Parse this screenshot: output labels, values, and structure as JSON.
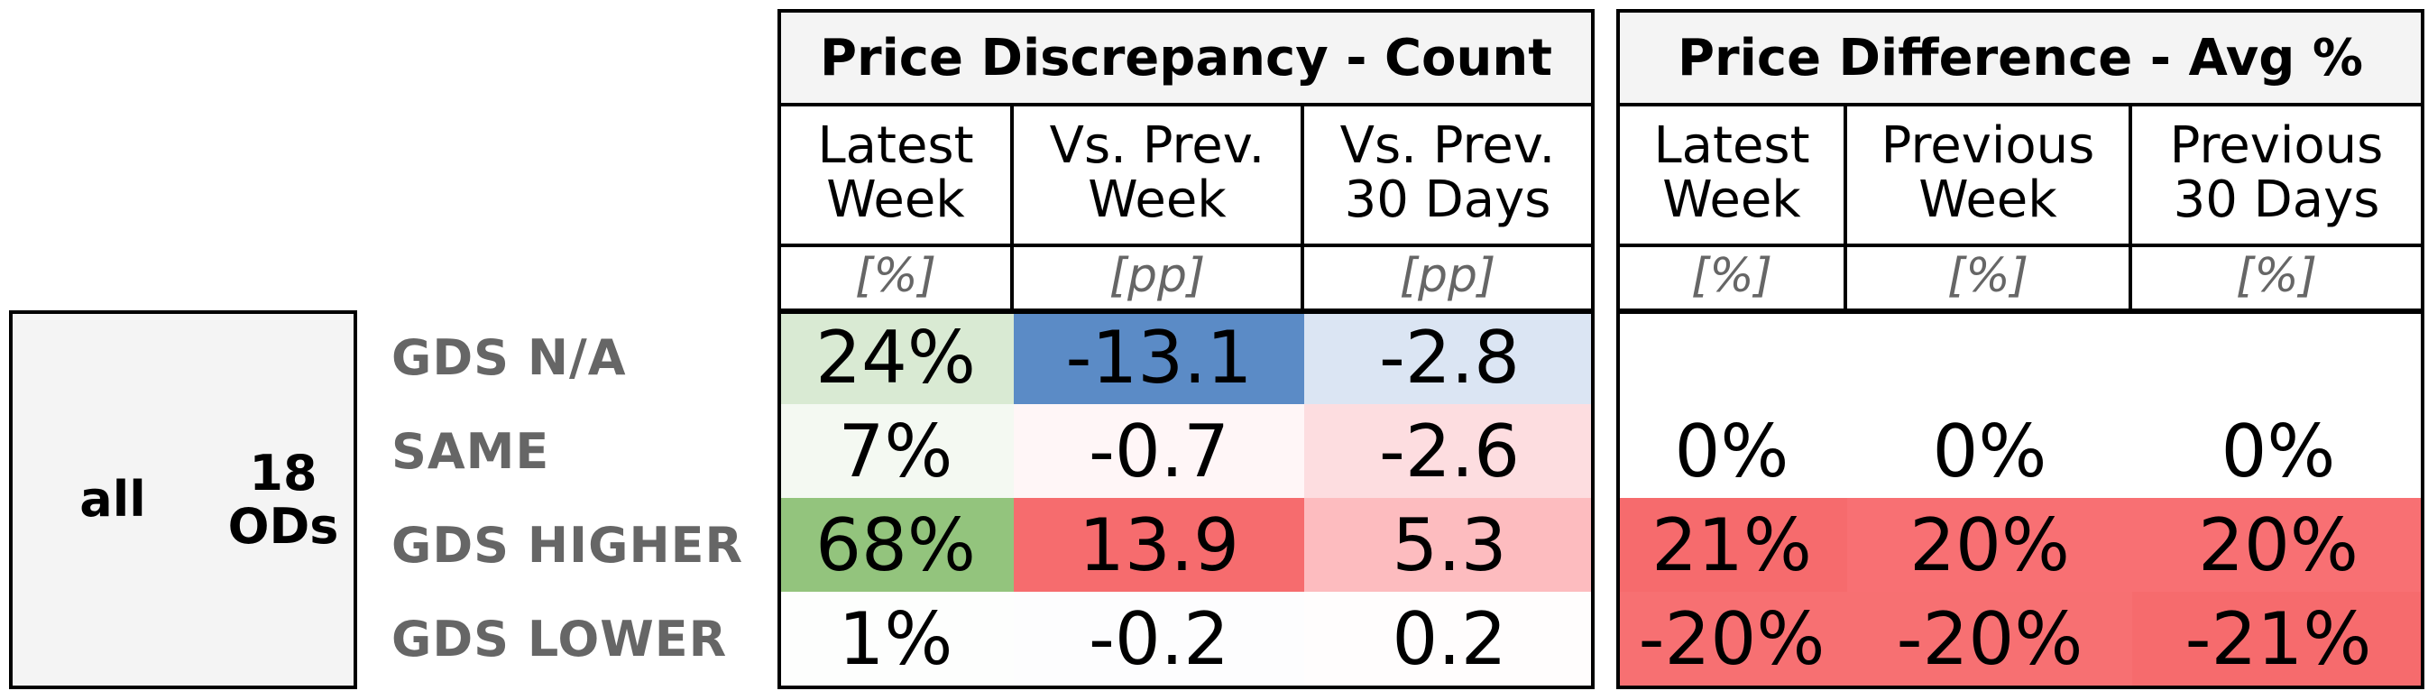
{
  "chart_data": {
    "type": "table",
    "row_group": {
      "segment": "all",
      "count_label": "18\nODs"
    },
    "rows": [
      "GDS N/A",
      "SAME",
      "GDS HIGHER",
      "GDS LOWER"
    ],
    "panels": [
      {
        "title": "Price Discrepancy - Count",
        "columns": [
          {
            "header": "Latest\nWeek",
            "unit": "[%]",
            "values": [
              "24%",
              "7%",
              "68%",
              "1%"
            ],
            "colors": [
              "#d9ead3",
              "#f4f9f2",
              "#93c47d",
              "#fdfefd"
            ]
          },
          {
            "header": "Vs. Prev.\nWeek",
            "unit": "[pp]",
            "values": [
              "-13.1",
              "-0.7",
              "13.9",
              "-0.2"
            ],
            "colors": [
              "#5b8bc6",
              "#fff6f7",
              "#f66c6e",
              "#fdfdfe"
            ]
          },
          {
            "header": "Vs. Prev.\n30 Days",
            "unit": "[pp]",
            "values": [
              "-2.8",
              "-2.6",
              "5.3",
              "0.2"
            ],
            "colors": [
              "#dbe5f3",
              "#fddde0",
              "#fdbcbf",
              "#fffdfd"
            ]
          }
        ]
      },
      {
        "title": "Price Difference - Avg %",
        "columns": [
          {
            "header": "Latest\nWeek",
            "unit": "[%]",
            "values": [
              "",
              "0%",
              "21%",
              "-20%"
            ],
            "colors": [
              "#ffffff",
              "#ffffff",
              "#f66b6d",
              "#f77072"
            ]
          },
          {
            "header": "Previous\nWeek",
            "unit": "[%]",
            "values": [
              "",
              "0%",
              "20%",
              "-20%"
            ],
            "colors": [
              "#ffffff",
              "#ffffff",
              "#f87073",
              "#f77072"
            ]
          },
          {
            "header": "Previous\n30 Days",
            "unit": "[%]",
            "values": [
              "",
              "0%",
              "20%",
              "-21%"
            ],
            "colors": [
              "#ffffff",
              "#ffffff",
              "#f87073",
              "#f66b6d"
            ]
          }
        ]
      }
    ]
  }
}
